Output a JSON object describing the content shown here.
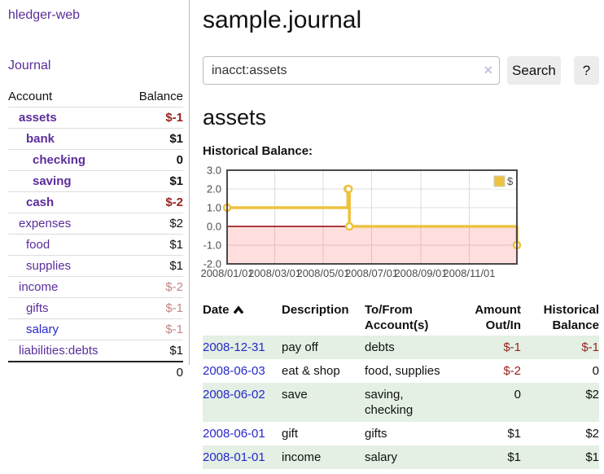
{
  "brand": "hledger-web",
  "nav": {
    "journal": "Journal"
  },
  "sidebar": {
    "header": {
      "account": "Account",
      "balance": "Balance"
    },
    "rows": [
      {
        "name": "assets",
        "balance": "$-1"
      },
      {
        "name": "bank",
        "balance": "$1"
      },
      {
        "name": "checking",
        "balance": "0"
      },
      {
        "name": "saving",
        "balance": "$1"
      },
      {
        "name": "cash",
        "balance": "$-2"
      },
      {
        "name": "expenses",
        "balance": "$2"
      },
      {
        "name": "food",
        "balance": "$1"
      },
      {
        "name": "supplies",
        "balance": "$1"
      },
      {
        "name": "income",
        "balance": "$-2"
      },
      {
        "name": "gifts",
        "balance": "$-1"
      },
      {
        "name": "salary",
        "balance": "$-1"
      },
      {
        "name": "liabilities:debts",
        "balance": "$1"
      }
    ],
    "total": "0"
  },
  "main": {
    "title": "sample.journal",
    "search": {
      "value": "inacct:assets",
      "clear_icon": "×",
      "search_label": "Search",
      "help_label": "?"
    },
    "account_heading": "assets",
    "chart_title": "Historical Balance:"
  },
  "chart_data": {
    "type": "line",
    "title": "Historical Balance",
    "series": [
      {
        "name": "$",
        "color": "#edc240",
        "step": true,
        "points": [
          [
            "2008-01-01",
            1.0
          ],
          [
            "2008-06-01",
            2.0
          ],
          [
            "2008-06-02",
            2.0
          ],
          [
            "2008-06-03",
            0.0
          ],
          [
            "2008-12-31",
            -1.0
          ]
        ]
      }
    ],
    "xrange": [
      "2008-01-01",
      "2008-12-31"
    ],
    "ylim": [
      -2.0,
      3.0
    ],
    "yticks": [
      "3.0",
      "2.0",
      "1.0",
      "0.0",
      "-1.0",
      "-2.0"
    ],
    "xticks": [
      "2008/01/01",
      "2008/03/01",
      "2008/05/01",
      "2008/07/01",
      "2008/09/01",
      "2008/11/01"
    ],
    "legend": {
      "label": "$",
      "position": "top-right"
    },
    "grid": true,
    "negative_region_color": "rgba(255,0,0,0.13)",
    "zero_line_color": "#8b0000",
    "border_color": "#4a4a4a",
    "grid_color": "#dcdcdc"
  },
  "register": {
    "columns": {
      "date": "Date",
      "description": "Description",
      "tofrom": "To/From Account(s)",
      "amount": "Amount Out/In",
      "balance": "Historical Balance"
    },
    "rows": [
      {
        "date": "2008-12-31",
        "description": "pay off",
        "tofrom": "debts",
        "amount": "$-1",
        "balance": "$-1"
      },
      {
        "date": "2008-06-03",
        "description": "eat & shop",
        "tofrom": "food, supplies",
        "amount": "$-2",
        "balance": "0"
      },
      {
        "date": "2008-06-02",
        "description": "save",
        "tofrom": "saving,\nchecking",
        "amount": "0",
        "balance": "$2"
      },
      {
        "date": "2008-06-01",
        "description": "gift",
        "tofrom": "gifts",
        "amount": "$1",
        "balance": "$2"
      },
      {
        "date": "2008-01-01",
        "description": "income",
        "tofrom": "salary",
        "amount": "$1",
        "balance": "$1"
      }
    ]
  }
}
